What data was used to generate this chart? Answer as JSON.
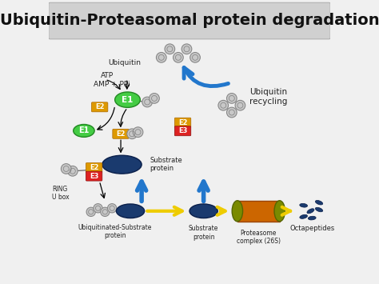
{
  "title": "Ubiquitin-Proteasomal protein degradation",
  "title_fontsize": 14,
  "title_bg": "#d0d0d0",
  "bg_color": "#f0f0f0",
  "colors": {
    "E1_green": "#44cc44",
    "E2_orange": "#dd9900",
    "E3_red": "#dd2222",
    "substrate_blue": "#1a3a6e",
    "proteasome_orange": "#cc6600",
    "proteasome_olive": "#7a8a00",
    "arrow_blue": "#2277cc",
    "arrow_yellow": "#eecc00",
    "ubiquitin_gray": "#aaaaaa",
    "text_color": "#111111"
  },
  "labels": {
    "ubiquitin": "Ubiquitin",
    "atp": "ATP",
    "amp_ppi": "AMP + PPi",
    "E1": "E1",
    "E2": "E2",
    "E3": "E3",
    "substrate_protein": "Substrate\nprotein",
    "ring_u_box": "RING\nU box",
    "ubiquitinated": "Ubiquitinated-Substrate\nprotein",
    "substrate_protein2": "Substrate\nprotein",
    "proteasome": "Proteasome\ncomplex (26S)",
    "octapeptides": "Octapeptides",
    "ubiquitin_recycling": "Ubiquitin\nrecycling"
  }
}
